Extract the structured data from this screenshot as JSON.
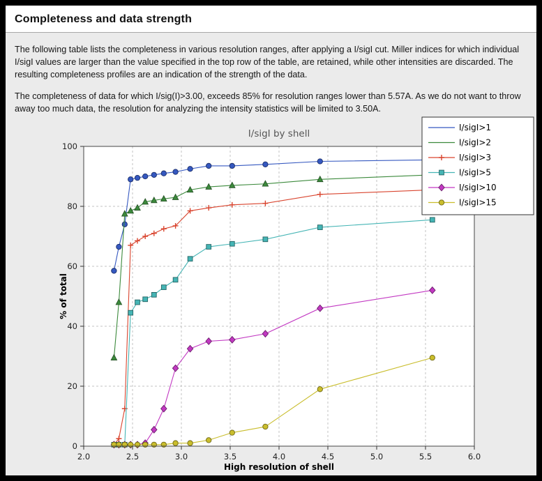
{
  "colors": {
    "frame": "#000000",
    "page_background": "#ebebeb",
    "header_background": "#ffffff",
    "plot_background": "#ffffff"
  },
  "page": {
    "title": "Completeness and data strength",
    "paragraphs": [
      "The following table lists the completeness in various resolution ranges, after applying a I/sigI cut. Miller indices for which individual I/sigI values are larger than the value specified in the top row of the table, are retained, while other intensities are discarded. The resulting completeness profiles are an indication of the strength of the data.",
      "The completeness of data for which I/sig(I)>3.00, exceeds  85% for resolution ranges lower than 5.57A. As we do not want to throw away too much data, the resolution for analyzing the intensity statistics will be limited to 3.50A."
    ]
  },
  "chart_data": {
    "type": "line",
    "title": "I/sigI by shell",
    "xlabel": "High resolution of shell",
    "ylabel": "% of total",
    "xlim": [
      2.0,
      6.0
    ],
    "ylim": [
      0,
      100
    ],
    "grid": "dashed",
    "legend_position": "top-right",
    "xticks": [
      2.0,
      2.5,
      3.0,
      3.5,
      4.0,
      4.5,
      5.0,
      5.5,
      6.0
    ],
    "xtick_labels": [
      "2.0",
      "2.5",
      "3.0",
      "3.5",
      "4.0",
      "4.5",
      "5.0",
      "5.5",
      "6.0"
    ],
    "yticks": [
      0,
      20,
      40,
      60,
      80,
      100
    ],
    "ytick_labels": [
      "0",
      "20",
      "40",
      "60",
      "80",
      "100"
    ],
    "x": [
      2.31,
      2.36,
      2.42,
      2.48,
      2.55,
      2.63,
      2.72,
      2.82,
      2.94,
      3.09,
      3.28,
      3.52,
      3.86,
      4.42,
      5.57
    ],
    "series": [
      {
        "name": "I/sigI>1",
        "color": "#3558c0",
        "marker": "circle",
        "legend_marker": false,
        "values": [
          58.5,
          66.5,
          74.0,
          89.0,
          89.5,
          90.0,
          90.5,
          91.0,
          91.5,
          92.5,
          93.5,
          93.5,
          94.0,
          95.0,
          95.5
        ]
      },
      {
        "name": "I/sigI>2",
        "color": "#3c8a3c",
        "marker": "triangle",
        "legend_marker": false,
        "values": [
          29.5,
          48.0,
          77.5,
          78.5,
          79.5,
          81.5,
          82.0,
          82.5,
          83.0,
          85.5,
          86.5,
          87.0,
          87.5,
          89.0,
          90.5
        ]
      },
      {
        "name": "I/sigI>3",
        "color": "#d9442e",
        "marker": "plus",
        "legend_marker": true,
        "values": [
          0.5,
          2.5,
          12.5,
          67.0,
          68.5,
          70.0,
          71.0,
          72.5,
          73.5,
          78.5,
          79.5,
          80.5,
          81.0,
          84.0,
          85.5
        ]
      },
      {
        "name": "I/sigI>5",
        "color": "#45b5b5",
        "marker": "square",
        "legend_marker": true,
        "values": [
          0.5,
          0.5,
          0.5,
          44.5,
          48.0,
          49.0,
          50.5,
          53.0,
          55.5,
          62.5,
          66.5,
          67.5,
          69.0,
          73.0,
          75.5
        ]
      },
      {
        "name": "I/sigI>10",
        "color": "#c238c2",
        "marker": "diamond",
        "legend_marker": true,
        "values": [
          0.5,
          0.5,
          0.5,
          0.5,
          0.5,
          1.0,
          5.5,
          12.5,
          26.0,
          32.5,
          35.0,
          35.5,
          37.5,
          46.0,
          52.0
        ]
      },
      {
        "name": "I/sigI>15",
        "color": "#c9bd2c",
        "marker": "circle",
        "legend_marker": true,
        "values": [
          0.5,
          0.5,
          0.5,
          0.5,
          0.5,
          0.5,
          0.5,
          0.5,
          1.0,
          1.0,
          2.0,
          4.5,
          6.5,
          19.0,
          29.5
        ]
      }
    ]
  }
}
